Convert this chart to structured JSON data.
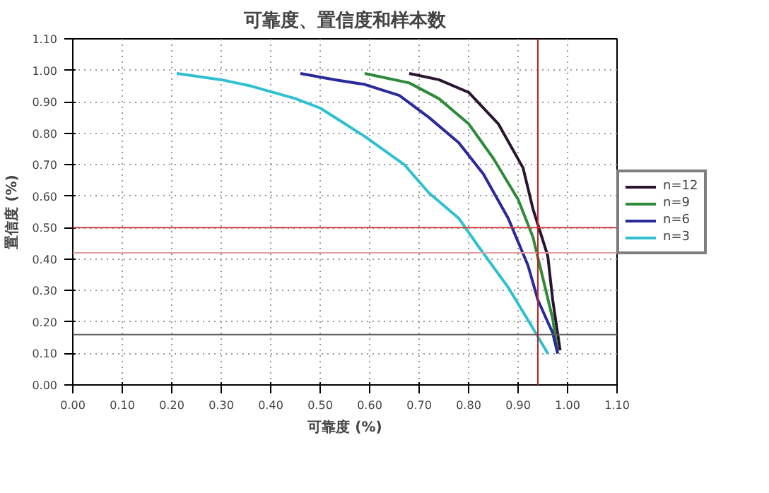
{
  "chart_data": {
    "type": "line",
    "title": "可靠度、置信度和样本数",
    "xlabel": "可靠度 (%)",
    "ylabel": "置信度 (%)",
    "xlim": [
      0,
      1.1
    ],
    "ylim": [
      0,
      1.1
    ],
    "xticks": [
      {
        "value": 0,
        "label": "0.00"
      },
      {
        "value": 0.1,
        "label": "0.10"
      },
      {
        "value": 0.2,
        "label": "0.20"
      },
      {
        "value": 0.3,
        "label": "0.30"
      },
      {
        "value": 0.4,
        "label": "0.40"
      },
      {
        "value": 0.5,
        "label": "0.50"
      },
      {
        "value": 0.6,
        "label": "0.60"
      },
      {
        "value": 0.7,
        "label": "0.70"
      },
      {
        "value": 0.8,
        "label": "0.80"
      },
      {
        "value": 0.9,
        "label": "0.90"
      },
      {
        "value": 1.0,
        "label": "1.00"
      },
      {
        "value": 1.1,
        "label": "1.10"
      }
    ],
    "yticks": [
      {
        "value": 0,
        "label": "0.00"
      },
      {
        "value": 0.1,
        "label": "0.10"
      },
      {
        "value": 0.2,
        "label": "0.20"
      },
      {
        "value": 0.3,
        "label": "0.30"
      },
      {
        "value": 0.4,
        "label": "0.40"
      },
      {
        "value": 0.5,
        "label": "0.50"
      },
      {
        "value": 0.6,
        "label": "0.60"
      },
      {
        "value": 0.7,
        "label": "0.70"
      },
      {
        "value": 0.8,
        "label": "0.80"
      },
      {
        "value": 0.9,
        "label": "0.90"
      },
      {
        "value": 1.0,
        "label": "1.00"
      },
      {
        "value": 1.1,
        "label": "1.10"
      }
    ],
    "grid": true,
    "legend": "right",
    "marker": "none",
    "line_style": "solid",
    "series": [
      {
        "name": "n=12",
        "color": "#2a1530",
        "x": [
          0.68,
          0.74,
          0.8,
          0.86,
          0.91,
          0.93,
          0.96,
          0.97,
          0.985
        ],
        "values": [
          0.99,
          0.97,
          0.93,
          0.83,
          0.69,
          0.56,
          0.41,
          0.27,
          0.11
        ]
      },
      {
        "name": "n=9",
        "color": "#2e8b3a",
        "x": [
          0.59,
          0.68,
          0.74,
          0.8,
          0.85,
          0.9,
          0.93,
          0.95,
          0.97,
          0.98
        ],
        "values": [
          0.99,
          0.96,
          0.91,
          0.83,
          0.72,
          0.59,
          0.47,
          0.34,
          0.21,
          0.1
        ]
      },
      {
        "name": "n=6",
        "color": "#2a2a9a",
        "x": [
          0.46,
          0.53,
          0.59,
          0.66,
          0.72,
          0.78,
          0.83,
          0.88,
          0.92,
          0.94,
          0.97,
          0.98
        ],
        "values": [
          0.99,
          0.97,
          0.955,
          0.92,
          0.85,
          0.77,
          0.67,
          0.53,
          0.38,
          0.27,
          0.165,
          0.1
        ]
      },
      {
        "name": "n=3",
        "color": "#30c0d0",
        "x": [
          0.21,
          0.3,
          0.36,
          0.45,
          0.5,
          0.55,
          0.59,
          0.67,
          0.72,
          0.78,
          0.82,
          0.88,
          0.93,
          0.96
        ],
        "values": [
          0.99,
          0.97,
          0.95,
          0.91,
          0.88,
          0.83,
          0.79,
          0.7,
          0.61,
          0.53,
          0.44,
          0.31,
          0.18,
          0.1
        ]
      }
    ],
    "ref_lines": [
      {
        "axis": "y",
        "value": 0.5,
        "color": "#d04040",
        "line_style": "solid"
      },
      {
        "axis": "y",
        "value": 0.42,
        "color": "#e0a0a0",
        "line_style": "solid"
      },
      {
        "axis": "y",
        "value": 0.16,
        "color": "#606060",
        "line_style": "solid"
      },
      {
        "axis": "x",
        "value": 0.94,
        "color": "#c02020",
        "line_style": "solid"
      }
    ]
  }
}
